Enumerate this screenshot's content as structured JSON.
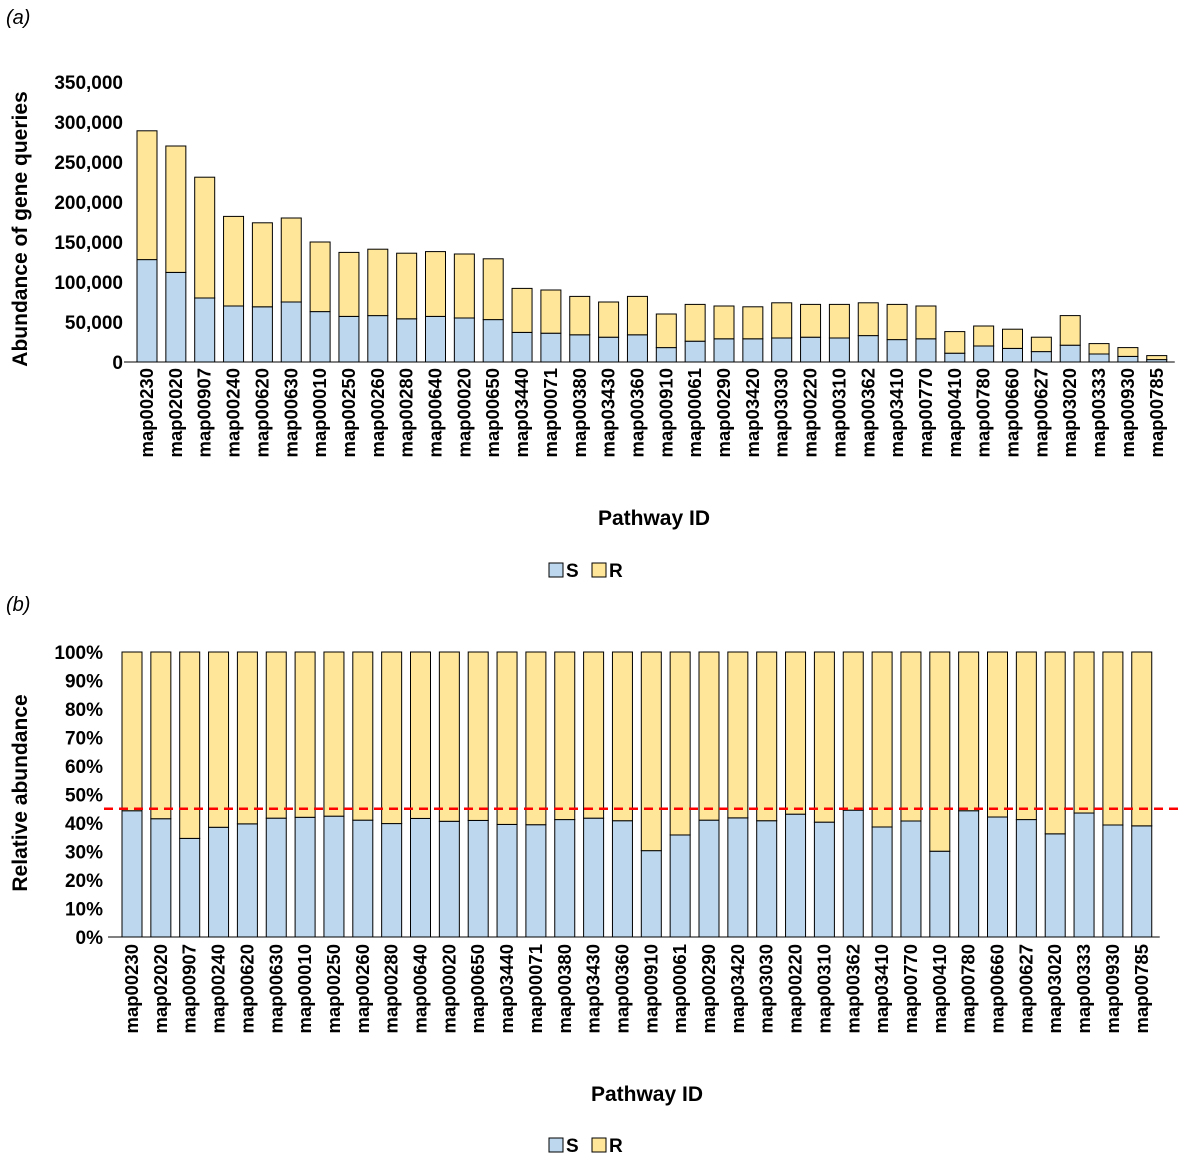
{
  "colors": {
    "S": "#bdd7ee",
    "R": "#ffe699",
    "outline": "#000000",
    "reference_line": "#ff0000"
  },
  "chart_data": [
    {
      "panel_label": "(a)",
      "type": "bar",
      "stacked": true,
      "title": "",
      "xlabel": "Pathway ID",
      "ylabel": "Abundance of gene queries",
      "ylim": [
        0,
        350000
      ],
      "yticks": [
        "0",
        "50,000",
        "100,000",
        "150,000",
        "200,000",
        "250,000",
        "300,000",
        "350,000"
      ],
      "categories": [
        "map00230",
        "map02020",
        "map00907",
        "map00240",
        "map00620",
        "map00630",
        "map00010",
        "map00250",
        "map00260",
        "map00280",
        "map00640",
        "map00020",
        "map00650",
        "map03440",
        "map00071",
        "map00380",
        "map03430",
        "map00360",
        "map00910",
        "map00061",
        "map00290",
        "map03420",
        "map03030",
        "map00220",
        "map00310",
        "map00362",
        "map03410",
        "map00770",
        "map00410",
        "map00780",
        "map00660",
        "map00627",
        "map03020",
        "map00333",
        "map00930",
        "map00785"
      ],
      "series": [
        {
          "name": "S",
          "values": [
            128000,
            112000,
            80000,
            70000,
            69000,
            75000,
            63000,
            57000,
            58000,
            54000,
            57000,
            55000,
            53000,
            37000,
            36000,
            34000,
            31000,
            34000,
            18000,
            26000,
            29000,
            29000,
            30000,
            31000,
            30000,
            33000,
            28000,
            29000,
            11000,
            20000,
            17000,
            13000,
            21000,
            10000,
            7000,
            3000
          ]
        },
        {
          "name": "R",
          "values": [
            161000,
            158000,
            151000,
            112000,
            105000,
            105000,
            87000,
            80000,
            83000,
            82000,
            81000,
            80000,
            76000,
            55000,
            54000,
            48000,
            44000,
            48000,
            42000,
            46000,
            41000,
            40000,
            44000,
            41000,
            42000,
            41000,
            44000,
            41000,
            27000,
            25000,
            24000,
            18000,
            37000,
            13000,
            11000,
            5000
          ]
        }
      ],
      "legend": [
        "S",
        "R"
      ],
      "legend_position": "bottom"
    },
    {
      "panel_label": "(b)",
      "type": "bar",
      "stacked": true,
      "title": "",
      "xlabel": "Pathway ID",
      "ylabel": "Relative abundance",
      "ylim": [
        0,
        100
      ],
      "yticks": [
        "0%",
        "10%",
        "20%",
        "30%",
        "40%",
        "50%",
        "60%",
        "70%",
        "80%",
        "90%",
        "100%"
      ],
      "reference_line": 45,
      "categories": [
        "map00230",
        "map02020",
        "map00907",
        "map00240",
        "map00620",
        "map00630",
        "map00010",
        "map00250",
        "map00260",
        "map00280",
        "map00640",
        "map00020",
        "map00650",
        "map03440",
        "map00071",
        "map00380",
        "map03430",
        "map00360",
        "map00910",
        "map00061",
        "map00290",
        "map03420",
        "map03030",
        "map00220",
        "map00310",
        "map00362",
        "map03410",
        "map00770",
        "map00410",
        "map00780",
        "map00660",
        "map00627",
        "map03020",
        "map00333",
        "map00930",
        "map00785"
      ],
      "series": [
        {
          "name": "S",
          "values": [
            44.3,
            41.5,
            34.6,
            38.5,
            39.7,
            41.7,
            42.0,
            42.4,
            41.0,
            39.8,
            41.6,
            40.6,
            40.9,
            39.5,
            39.4,
            41.2,
            41.7,
            40.8,
            30.3,
            35.8,
            41.0,
            41.8,
            40.8,
            43.1,
            40.3,
            44.5,
            38.6,
            40.7,
            30.1,
            44.3,
            42.1,
            41.2,
            36.2,
            43.5,
            39.3,
            39.0
          ]
        },
        {
          "name": "R",
          "values": [
            55.7,
            58.5,
            65.4,
            61.5,
            60.3,
            58.3,
            58.0,
            57.6,
            59.0,
            60.2,
            58.4,
            59.4,
            59.1,
            60.5,
            60.6,
            58.8,
            58.3,
            59.2,
            69.7,
            64.2,
            59.0,
            58.2,
            59.2,
            56.9,
            59.7,
            55.5,
            61.4,
            59.3,
            69.9,
            55.7,
            57.9,
            58.8,
            63.8,
            56.5,
            60.7,
            61.0
          ]
        }
      ],
      "legend": [
        "S",
        "R"
      ],
      "legend_position": "bottom"
    }
  ]
}
